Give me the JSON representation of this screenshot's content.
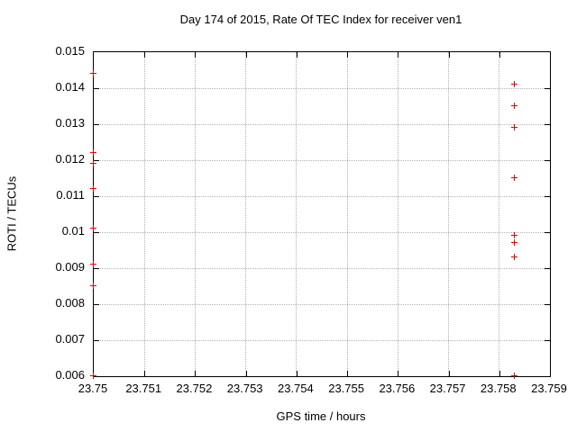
{
  "title": "Day 174 of 2015, Rate Of TEC Index for receiver ven1",
  "chart_data": {
    "type": "scatter",
    "title": "Day 174 of 2015, Rate Of TEC Index for receiver ven1",
    "xlabel": "GPS time / hours",
    "ylabel": "ROTI / TECUs",
    "xlim": [
      23.75,
      23.759
    ],
    "ylim": [
      0.006,
      0.015
    ],
    "xticks": [
      23.75,
      23.751,
      23.752,
      23.753,
      23.754,
      23.755,
      23.756,
      23.757,
      23.758,
      23.759
    ],
    "xtick_labels": [
      "23.75",
      "23.751",
      "23.752",
      "23.753",
      "23.754",
      "23.755",
      "23.756",
      "23.757",
      "23.758",
      "23.759"
    ],
    "yticks": [
      0.006,
      0.007,
      0.008,
      0.009,
      0.01,
      0.011,
      0.012,
      0.013,
      0.014,
      0.015
    ],
    "ytick_labels": [
      "0.006",
      "0.007",
      "0.008",
      "0.009",
      "0.01",
      "0.011",
      "0.012",
      "0.013",
      "0.014",
      "0.015"
    ],
    "grid": true,
    "legend": "none",
    "marker": "plus",
    "marker_color": "#e80000",
    "grid_color": "#b0b0b0",
    "border_color": "#000000",
    "series": [
      {
        "name": "ROTI",
        "points": [
          [
            23.75,
            0.0144
          ],
          [
            23.75,
            0.0122
          ],
          [
            23.75,
            0.0119
          ],
          [
            23.75,
            0.0112
          ],
          [
            23.75,
            0.0101
          ],
          [
            23.75,
            0.0091
          ],
          [
            23.75,
            0.0085
          ],
          [
            23.75,
            0.006
          ],
          [
            23.7583,
            0.0141
          ],
          [
            23.7583,
            0.0135
          ],
          [
            23.7583,
            0.0129
          ],
          [
            23.7583,
            0.0115
          ],
          [
            23.7583,
            0.0099
          ],
          [
            23.7583,
            0.0097
          ],
          [
            23.7583,
            0.0093
          ],
          [
            23.7583,
            0.006
          ]
        ]
      }
    ]
  }
}
